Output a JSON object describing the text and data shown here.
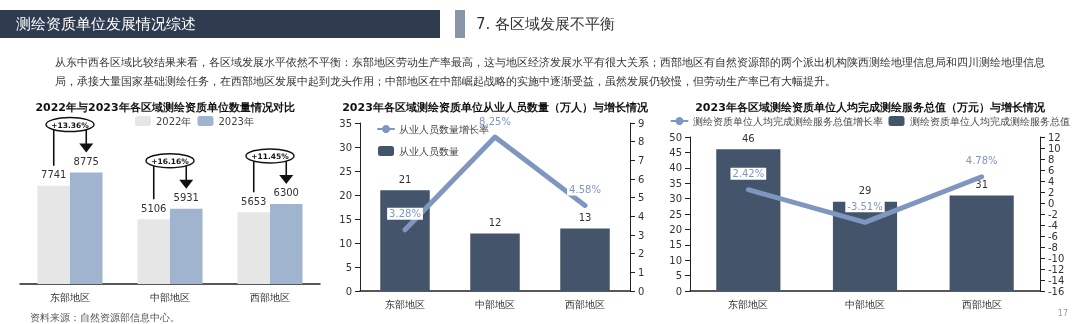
{
  "chart_data": [
    {
      "type": "other",
      "title": "测绘资质单位发展情况综述",
      "subtitle": "7. 各区域发展不平衡",
      "annotations": [
        "从东中西各区域比较结果来看，各区域发展水平依然不平衡：东部地区劳动生产率最高，这与地区经济发展水平有很大关系；西部地区有自然资源部的两个派出机构陕西测绘地理信息局和四川测绘地理信息局，承接大量国家基础测绘任务，在西部地区发展中起到龙头作用；中部地区在中部崛起战略的实施中逐渐受益，虽然发展仍较慢，但劳动生产率已有大幅提升。",
        "17"
      ]
    },
    {
      "type": "bar",
      "title": "2022年与2023年各区域测绘资质单位数量情况对比",
      "categories": [
        "东部地区",
        "中部地区",
        "西部地区"
      ],
      "series": [
        {
          "name": "2022年",
          "color": "#e7e6e6",
          "values": [
            7741,
            5106,
            5653
          ]
        },
        {
          "name": "2023年",
          "color": "#a0b4d0",
          "values": [
            8775,
            5931,
            6300
          ]
        }
      ],
      "data_labels": true,
      "legend": "top",
      "tick_labels": "x",
      "annotations": [
        "+13.36%",
        "+16.16%",
        "+11.45%",
        "资料来源：自然资源部信息中心。"
      ]
    },
    {
      "type": "bar",
      "title": "2023年各区域测绘资质单位从业人员数量（万人）与增长情况",
      "categories": [
        "东部地区",
        "中部地区",
        "西部地区"
      ],
      "series": [
        {
          "name": "从业人员数量增长率",
          "type": "line",
          "axis": "y2",
          "color": "#7f96c0",
          "values": [
            3.28,
            8.25,
            4.58
          ],
          "value_labels": [
            "3.28%",
            "8.25%",
            "4.58%"
          ]
        },
        {
          "name": "从业人员数量",
          "color": "#44546a",
          "values": [
            21,
            12,
            13
          ]
        }
      ],
      "ylim": [
        0,
        35
      ],
      "yticks": [
        0,
        5,
        10,
        15,
        20,
        25,
        30,
        35
      ],
      "y2lim": [
        0,
        9
      ],
      "y2ticks": [
        0,
        1,
        2,
        3,
        4,
        5,
        6,
        7,
        8,
        9
      ],
      "data_labels": true,
      "marker": "none",
      "legend": "top left"
    },
    {
      "type": "bar",
      "title": "2023年各区域测绘资质单位人均完成测绘服务总值（万元）与增长情况",
      "categories": [
        "东部地区",
        "中部地区",
        "西部地区"
      ],
      "series": [
        {
          "name": "测绘资质单位人均完成测绘服务总值增长率",
          "type": "line",
          "axis": "y2",
          "color": "#7f96c0",
          "values": [
            2.42,
            -3.51,
            4.78
          ],
          "value_labels": [
            "2.42%",
            "-3.51%",
            "4.78%"
          ]
        },
        {
          "name": "测绘资质单位人均完成测绘服务总值",
          "color": "#44546a",
          "values": [
            46,
            29,
            31
          ]
        }
      ],
      "ylim": [
        0,
        50
      ],
      "yticks": [
        0,
        5,
        10,
        15,
        20,
        25,
        30,
        35,
        40,
        45,
        50
      ],
      "y2lim": [
        -16,
        12
      ],
      "y2ticks": [
        -16,
        -14,
        -12,
        -10,
        -8,
        -6,
        -4,
        -2,
        0,
        2,
        4,
        6,
        8,
        10,
        12
      ],
      "data_labels": true,
      "marker": "none",
      "legend": "top"
    }
  ]
}
